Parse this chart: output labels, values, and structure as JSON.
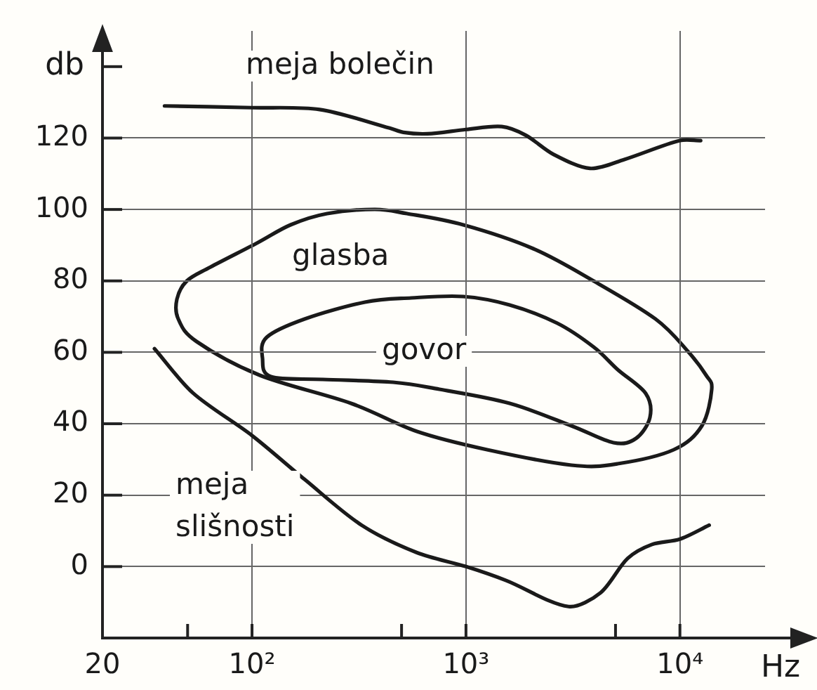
{
  "chart_data": {
    "type": "line",
    "xlabel": "Hz",
    "ylabel": "db",
    "xlim": [
      20,
      25000
    ],
    "ylim": [
      -20,
      150
    ],
    "log": "x",
    "grid": true,
    "legend": false,
    "marker": "none",
    "line_style": "solid",
    "xticks": [
      20,
      {
        "value": 50,
        "label": null
      },
      {
        "value": 100,
        "label": "10²"
      },
      {
        "value": 500,
        "label": null
      },
      {
        "value": 1000,
        "label": "10³"
      },
      {
        "value": 5000,
        "label": null
      },
      {
        "value": 10000,
        "label": "10⁴"
      }
    ],
    "yticks": [
      0,
      20,
      40,
      60,
      80,
      100,
      120,
      {
        "value": 140,
        "label": null
      }
    ],
    "series": [
      {
        "color": "#1a1a1a",
        "x": [
          39,
          100,
          207,
          440,
          510,
          660,
          1000,
          1470,
          1900,
          2570,
          3800,
          5500,
          10000,
          12500
        ],
        "values": [
          129,
          128.5,
          128,
          122.8,
          121.6,
          121.2,
          122.4,
          123.2,
          120.8,
          115.4,
          111.5,
          114,
          119.3,
          119.3
        ]
      },
      {
        "color": "#1a1a1a",
        "x": [
          35,
          53,
          100,
          177,
          325,
          590,
          1000,
          1540,
          3020,
          4260,
          5700,
          7400,
          10000,
          13700
        ],
        "values": [
          61,
          48.6,
          36.7,
          24.3,
          11.6,
          3.9,
          0,
          -3.9,
          -11.2,
          -7.3,
          2.3,
          6.2,
          7.7,
          11.6
        ]
      }
    ],
    "annotations": [
      "meja bolečin",
      "glasba",
      "govor",
      "meja slišnosti"
    ]
  }
}
